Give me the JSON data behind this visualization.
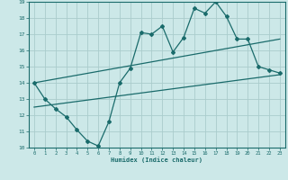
{
  "xlabel": "Humidex (Indice chaleur)",
  "xlim": [
    -0.5,
    23.5
  ],
  "ylim": [
    10,
    19
  ],
  "xticks": [
    0,
    1,
    2,
    3,
    4,
    5,
    6,
    7,
    8,
    9,
    10,
    11,
    12,
    13,
    14,
    15,
    16,
    17,
    18,
    19,
    20,
    21,
    22,
    23
  ],
  "yticks": [
    10,
    11,
    12,
    13,
    14,
    15,
    16,
    17,
    18,
    19
  ],
  "bg_color": "#cce8e8",
  "grid_color": "#aacccc",
  "line_color": "#1a6b6b",
  "line1_x": [
    0,
    1,
    2,
    3,
    4,
    5,
    6,
    7,
    8,
    9,
    10,
    11,
    12,
    13,
    14,
    15,
    16,
    17,
    18,
    19,
    20,
    21,
    22,
    23
  ],
  "line1_y": [
    14.0,
    13.0,
    12.4,
    11.9,
    11.1,
    10.4,
    10.1,
    11.6,
    14.0,
    14.9,
    17.1,
    17.0,
    17.5,
    15.9,
    16.8,
    18.6,
    18.3,
    19.0,
    18.1,
    16.7,
    16.7,
    15.0,
    14.8,
    14.6
  ],
  "line2_x": [
    0,
    23
  ],
  "line2_y": [
    14.0,
    16.7
  ],
  "line3_x": [
    0,
    23
  ],
  "line3_y": [
    12.5,
    14.5
  ]
}
